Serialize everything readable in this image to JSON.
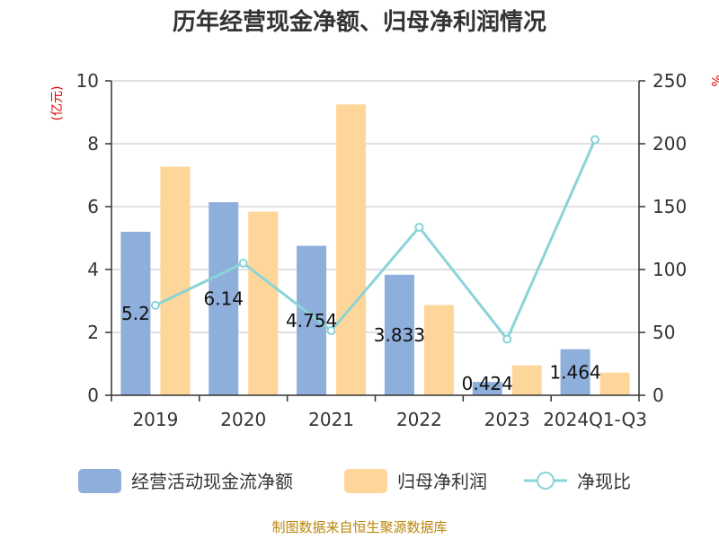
{
  "title": "历年经营现金净额、归母净利润情况",
  "source": "制图数据来自恒生聚源数据库",
  "chart_data": {
    "type": "bar",
    "categories": [
      "2019",
      "2020",
      "2021",
      "2022",
      "2023",
      "2024Q1-Q3"
    ],
    "left_axis": {
      "unit": "(亿元)",
      "ylim": [
        0,
        10
      ],
      "ticks": [
        0,
        2,
        4,
        6,
        8,
        10
      ]
    },
    "right_axis": {
      "unit": "%",
      "ylim": [
        0,
        250
      ],
      "ticks": [
        0,
        50,
        100,
        150,
        200,
        250
      ]
    },
    "grid": true,
    "legend_position": "bottom",
    "series": [
      {
        "name": "经营活动现金流净额",
        "type": "bar",
        "axis": "left",
        "color": "#8eaedb",
        "values": [
          5.2,
          6.14,
          4.754,
          3.833,
          0.424,
          1.464
        ],
        "labels": [
          "5.2",
          "6.14",
          "4.754",
          "3.833",
          "0.424",
          "1.464"
        ]
      },
      {
        "name": "归母净利润",
        "type": "bar",
        "axis": "left",
        "color": "#ffd699",
        "values": [
          7.27,
          5.84,
          9.25,
          2.87,
          0.95,
          0.72
        ]
      },
      {
        "name": "净现比",
        "type": "line",
        "axis": "right",
        "color": "#8ad4d8",
        "values": [
          71.5,
          105.1,
          51.4,
          133.6,
          44.6,
          203.3
        ]
      }
    ]
  }
}
